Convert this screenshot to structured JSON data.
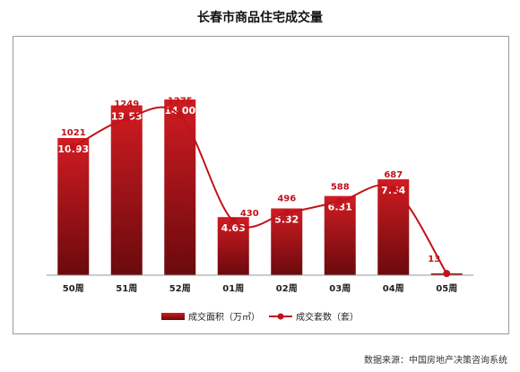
{
  "title": "长春市商品住宅成交量",
  "source": "数据来源：中国房地产决策咨询系统",
  "chart_data": {
    "type": "bar",
    "categories": [
      "50周",
      "51周",
      "52周",
      "01周",
      "02周",
      "03周",
      "04周",
      "05周"
    ],
    "series": [
      {
        "name": "成交面积（万㎡）",
        "type": "bar",
        "values": [
          10.93,
          13.53,
          14.0,
          4.63,
          5.32,
          6.31,
          7.64,
          0.15
        ],
        "labels": [
          "10.93",
          "13.53",
          "14.00",
          "4.63",
          "5.32",
          "6.31",
          "7.64",
          ""
        ]
      },
      {
        "name": "成交套数（套）",
        "type": "line",
        "values": [
          1021,
          1249,
          1275,
          430,
          496,
          588,
          687,
          13
        ],
        "labels": [
          "1021",
          "1249",
          "1275",
          "430",
          "496",
          "588",
          "687",
          "13"
        ]
      }
    ],
    "ylim_bar": [
      0,
      20
    ],
    "ylim_line": [
      0,
      2000
    ],
    "grid": false,
    "legend_position": "bottom",
    "colors": {
      "bar_top": "#c8171e",
      "bar_bottom": "#6b0a0e",
      "line": "#c0121a",
      "label_text": "#ffffff"
    }
  }
}
